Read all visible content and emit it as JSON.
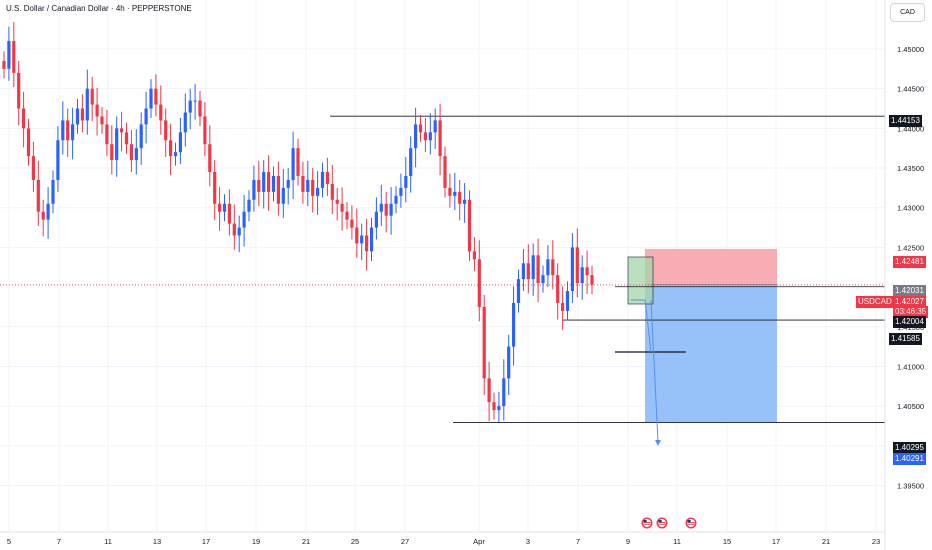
{
  "header": {
    "title": "U.S. Dollar / Canadian Dollar · 4h · PEPPERSTONE",
    "currency": "CAD"
  },
  "colors": {
    "up": "#2962ff",
    "down": "#f23645",
    "profit_zone": "#90bff9",
    "loss_zone": "#f7a9af",
    "entry_box": "#a5d6a7",
    "grid": "#f0f3fa",
    "axis_text": "#131722"
  },
  "badges": {
    "upper_level": "1.44153",
    "stop": "1.42481",
    "entry": "1.42031",
    "last_symbol": "USDCAD",
    "last_price": "1.42027",
    "countdown": "03:46:35",
    "mid_price": "1.42004",
    "level_2": "1.41585",
    "target": "1.40295",
    "target_close": "1.40291"
  },
  "chart_data": {
    "type": "candlestick",
    "symbol": "USDCAD",
    "timeframe": "4h",
    "source": "PEPPERSTONE",
    "y_ticks": [
      1.45,
      1.445,
      1.44,
      1.435,
      1.43,
      1.425,
      1.415,
      1.41,
      1.405,
      1.4,
      1.395
    ],
    "y_tick_labels": [
      "1.45000",
      "1.44500",
      "1.44000",
      "1.43500",
      "1.43000",
      "1.42500",
      "1.41500",
      "1.41000",
      "1.40500",
      "1.40000",
      "1.39500"
    ],
    "ylim": [
      1.3925,
      1.4535
    ],
    "x_tick_labels": [
      "5",
      "7",
      "11",
      "13",
      "17",
      "19",
      "21",
      "25",
      "27",
      "Apr",
      "3",
      "7",
      "9",
      "11",
      "15",
      "17",
      "21",
      "23"
    ],
    "x_tick_positions": [
      9,
      59,
      108,
      157,
      206,
      256,
      306,
      355,
      405,
      479,
      528,
      578,
      628,
      677,
      727,
      776,
      826,
      876
    ],
    "horizontal_levels": [
      {
        "value": 1.44153,
        "label": "1.44153"
      },
      {
        "value": 1.41585,
        "label": "1.41585"
      },
      {
        "value": 1.40295,
        "label": "1.40295"
      }
    ],
    "position": {
      "direction": "short",
      "entry": 1.42031,
      "stop": 1.42481,
      "target": 1.40295
    },
    "last_price": 1.42027,
    "closes": [
      1.4475,
      1.451,
      1.447,
      1.4425,
      1.44,
      1.4365,
      1.4335,
      1.4295,
      1.4285,
      1.4305,
      1.4335,
      1.4385,
      1.441,
      1.4385,
      1.4405,
      1.4425,
      1.441,
      1.445,
      1.443,
      1.4415,
      1.4405,
      1.438,
      1.436,
      1.44,
      1.4395,
      1.438,
      1.436,
      1.4375,
      1.4405,
      1.4425,
      1.445,
      1.443,
      1.441,
      1.4385,
      1.4365,
      1.437,
      1.4395,
      1.442,
      1.4435,
      1.4435,
      1.4415,
      1.438,
      1.4345,
      1.4305,
      1.4295,
      1.4305,
      1.428,
      1.4265,
      1.4275,
      1.4295,
      1.431,
      1.4335,
      1.432,
      1.4345,
      1.432,
      1.434,
      1.4305,
      1.4325,
      1.4335,
      1.4375,
      1.434,
      1.432,
      1.4335,
      1.4315,
      1.4325,
      1.4345,
      1.433,
      1.431,
      1.4305,
      1.4295,
      1.4285,
      1.4275,
      1.4255,
      1.4265,
      1.4245,
      1.4275,
      1.4295,
      1.4305,
      1.429,
      1.4305,
      1.4315,
      1.4325,
      1.434,
      1.4375,
      1.4405,
      1.4395,
      1.4385,
      1.4395,
      1.441,
      1.4365,
      1.4325,
      1.4315,
      1.432,
      1.4305,
      1.431,
      1.4245,
      1.4235,
      1.4175,
      1.4085,
      1.4055,
      1.4045,
      1.405,
      1.4085,
      1.4125,
      1.418,
      1.421,
      1.423,
      1.421,
      1.424,
      1.4205,
      1.4215,
      1.4235,
      1.4215,
      1.418,
      1.417,
      1.4195,
      1.425,
      1.4205,
      1.4225,
      1.4215,
      1.4203
    ]
  }
}
